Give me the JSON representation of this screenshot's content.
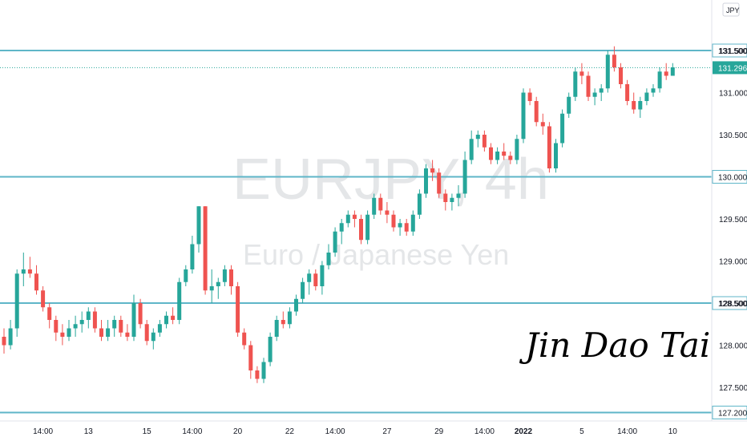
{
  "chart_data": {
    "type": "candlestick",
    "symbol": "EURJPY, 4h",
    "description": "Euro / Japanese Yen",
    "currency": "JPY",
    "signature": "Jin Dao Tai",
    "y_ticks": [
      "131.500",
      "131.000",
      "130.500",
      "129.500",
      "129.000",
      "128.500",
      "128.000",
      "127.500"
    ],
    "last_price": "131.296",
    "ylim": [
      127.15,
      132.25
    ],
    "x_ticks": [
      {
        "label": "14:00",
        "i": 6
      },
      {
        "label": "13",
        "i": 13
      },
      {
        "label": "15",
        "i": 22
      },
      {
        "label": "14:00",
        "i": 29
      },
      {
        "label": "20",
        "i": 36
      },
      {
        "label": "22",
        "i": 44
      },
      {
        "label": "14:00",
        "i": 51
      },
      {
        "label": "27",
        "i": 59
      },
      {
        "label": "29",
        "i": 67
      },
      {
        "label": "14:00",
        "i": 74
      },
      {
        "label": "2022",
        "i": 80
      },
      {
        "label": "5",
        "i": 89
      },
      {
        "label": "14:00",
        "i": 96
      },
      {
        "label": "10",
        "i": 103
      }
    ],
    "horizontal_levels": [
      {
        "value": 131.5,
        "label": "131.500",
        "color": "#5fb6c8"
      },
      {
        "value": 130.0,
        "label": "130.000",
        "color": "#5fb6c8"
      },
      {
        "value": 128.5,
        "label": "128.500",
        "color": "#5fb6c8"
      },
      {
        "value": 127.2,
        "label": "127.200",
        "color": "#5fb6c8"
      }
    ],
    "up_color": "#26a69a",
    "down_color": "#ef5350",
    "candles": [
      [
        128.1,
        128.2,
        127.9,
        128.0
      ],
      [
        128.0,
        128.3,
        127.95,
        128.2
      ],
      [
        128.2,
        128.9,
        128.1,
        128.85
      ],
      [
        128.85,
        129.1,
        128.7,
        128.9
      ],
      [
        128.9,
        129.05,
        128.8,
        128.85
      ],
      [
        128.85,
        128.95,
        128.6,
        128.65
      ],
      [
        128.65,
        128.7,
        128.4,
        128.45
      ],
      [
        128.45,
        128.5,
        128.2,
        128.3
      ],
      [
        128.3,
        128.35,
        128.05,
        128.15
      ],
      [
        128.15,
        128.25,
        128.0,
        128.1
      ],
      [
        128.1,
        128.3,
        128.05,
        128.2
      ],
      [
        128.2,
        128.35,
        128.1,
        128.25
      ],
      [
        128.25,
        128.4,
        128.15,
        128.3
      ],
      [
        128.3,
        128.45,
        128.2,
        128.4
      ],
      [
        128.4,
        128.45,
        128.15,
        128.2
      ],
      [
        128.2,
        128.3,
        128.05,
        128.1
      ],
      [
        128.1,
        128.3,
        128.05,
        128.2
      ],
      [
        128.2,
        128.35,
        128.1,
        128.3
      ],
      [
        128.3,
        128.35,
        128.1,
        128.15
      ],
      [
        128.15,
        128.25,
        128.05,
        128.1
      ],
      [
        128.1,
        128.6,
        128.05,
        128.5
      ],
      [
        128.5,
        128.55,
        128.2,
        128.25
      ],
      [
        128.25,
        128.3,
        128.0,
        128.05
      ],
      [
        128.05,
        128.2,
        127.95,
        128.15
      ],
      [
        128.15,
        128.3,
        128.1,
        128.25
      ],
      [
        128.25,
        128.4,
        128.2,
        128.35
      ],
      [
        128.35,
        128.45,
        128.25,
        128.3
      ],
      [
        128.3,
        128.8,
        128.25,
        128.75
      ],
      [
        128.75,
        128.95,
        128.7,
        128.9
      ],
      [
        128.9,
        129.3,
        128.85,
        129.2
      ],
      [
        129.2,
        129.65,
        129.1,
        129.65
      ],
      [
        129.65,
        129.65,
        128.6,
        128.65
      ],
      [
        128.65,
        128.9,
        128.5,
        128.7
      ],
      [
        128.7,
        128.8,
        128.55,
        128.75
      ],
      [
        128.75,
        128.95,
        128.7,
        128.9
      ],
      [
        128.9,
        128.95,
        128.6,
        128.7
      ],
      [
        128.7,
        128.75,
        128.1,
        128.15
      ],
      [
        128.15,
        128.2,
        127.95,
        128.0
      ],
      [
        128.0,
        128.05,
        127.6,
        127.7
      ],
      [
        127.7,
        127.75,
        127.55,
        127.6
      ],
      [
        127.6,
        127.85,
        127.55,
        127.8
      ],
      [
        127.8,
        128.15,
        127.75,
        128.1
      ],
      [
        128.1,
        128.35,
        128.05,
        128.3
      ],
      [
        128.3,
        128.4,
        128.2,
        128.25
      ],
      [
        128.25,
        128.45,
        128.2,
        128.4
      ],
      [
        128.4,
        128.6,
        128.35,
        128.55
      ],
      [
        128.55,
        128.8,
        128.5,
        128.75
      ],
      [
        128.75,
        128.9,
        128.6,
        128.85
      ],
      [
        128.85,
        128.9,
        128.65,
        128.7
      ],
      [
        128.7,
        129.0,
        128.6,
        128.95
      ],
      [
        128.95,
        129.2,
        128.9,
        129.1
      ],
      [
        129.1,
        129.4,
        129.05,
        129.35
      ],
      [
        129.35,
        129.5,
        129.2,
        129.45
      ],
      [
        129.45,
        129.6,
        129.4,
        129.55
      ],
      [
        129.55,
        129.6,
        129.4,
        129.5
      ],
      [
        129.5,
        129.55,
        129.2,
        129.25
      ],
      [
        129.25,
        129.6,
        129.2,
        129.55
      ],
      [
        129.55,
        129.8,
        129.5,
        129.75
      ],
      [
        129.75,
        129.8,
        129.55,
        129.6
      ],
      [
        129.6,
        129.7,
        129.45,
        129.55
      ],
      [
        129.55,
        129.6,
        129.35,
        129.4
      ],
      [
        129.4,
        129.5,
        129.3,
        129.45
      ],
      [
        129.45,
        129.5,
        129.3,
        129.35
      ],
      [
        129.35,
        129.6,
        129.3,
        129.55
      ],
      [
        129.55,
        129.85,
        129.5,
        129.8
      ],
      [
        129.8,
        130.15,
        129.75,
        130.1
      ],
      [
        130.1,
        130.2,
        129.95,
        130.05
      ],
      [
        130.05,
        130.1,
        129.75,
        129.8
      ],
      [
        129.8,
        129.85,
        129.6,
        129.7
      ],
      [
        129.7,
        129.8,
        129.6,
        129.75
      ],
      [
        129.75,
        129.9,
        129.65,
        129.8
      ],
      [
        129.8,
        130.3,
        129.75,
        130.2
      ],
      [
        130.2,
        130.55,
        130.15,
        130.45
      ],
      [
        130.45,
        130.55,
        130.35,
        130.5
      ],
      [
        130.5,
        130.55,
        130.3,
        130.35
      ],
      [
        130.35,
        130.4,
        130.15,
        130.2
      ],
      [
        130.2,
        130.35,
        130.15,
        130.3
      ],
      [
        130.3,
        130.4,
        130.2,
        130.25
      ],
      [
        130.25,
        130.3,
        130.15,
        130.2
      ],
      [
        130.2,
        130.5,
        130.15,
        130.45
      ],
      [
        130.45,
        131.05,
        130.4,
        131.0
      ],
      [
        131.0,
        131.05,
        130.85,
        130.9
      ],
      [
        130.9,
        130.95,
        130.6,
        130.65
      ],
      [
        130.65,
        130.75,
        130.5,
        130.6
      ],
      [
        130.6,
        130.65,
        130.05,
        130.1
      ],
      [
        130.1,
        130.45,
        130.05,
        130.4
      ],
      [
        130.4,
        130.8,
        130.35,
        130.75
      ],
      [
        130.75,
        131.0,
        130.7,
        130.95
      ],
      [
        130.95,
        131.3,
        130.9,
        131.25
      ],
      [
        131.25,
        131.35,
        131.1,
        131.2
      ],
      [
        131.2,
        131.25,
        130.9,
        130.95
      ],
      [
        130.95,
        131.05,
        130.85,
        131.0
      ],
      [
        131.0,
        131.1,
        130.9,
        131.05
      ],
      [
        131.05,
        131.5,
        131.0,
        131.45
      ],
      [
        131.45,
        131.55,
        131.25,
        131.3
      ],
      [
        131.3,
        131.35,
        131.05,
        131.1
      ],
      [
        131.1,
        131.15,
        130.85,
        130.9
      ],
      [
        130.9,
        131.0,
        130.75,
        130.8
      ],
      [
        130.8,
        130.95,
        130.7,
        130.9
      ],
      [
        130.9,
        131.05,
        130.85,
        131.0
      ],
      [
        131.0,
        131.1,
        130.95,
        131.05
      ],
      [
        131.05,
        131.3,
        131.0,
        131.25
      ],
      [
        131.25,
        131.35,
        131.15,
        131.2
      ],
      [
        131.2,
        131.35,
        131.2,
        131.3
      ]
    ]
  }
}
